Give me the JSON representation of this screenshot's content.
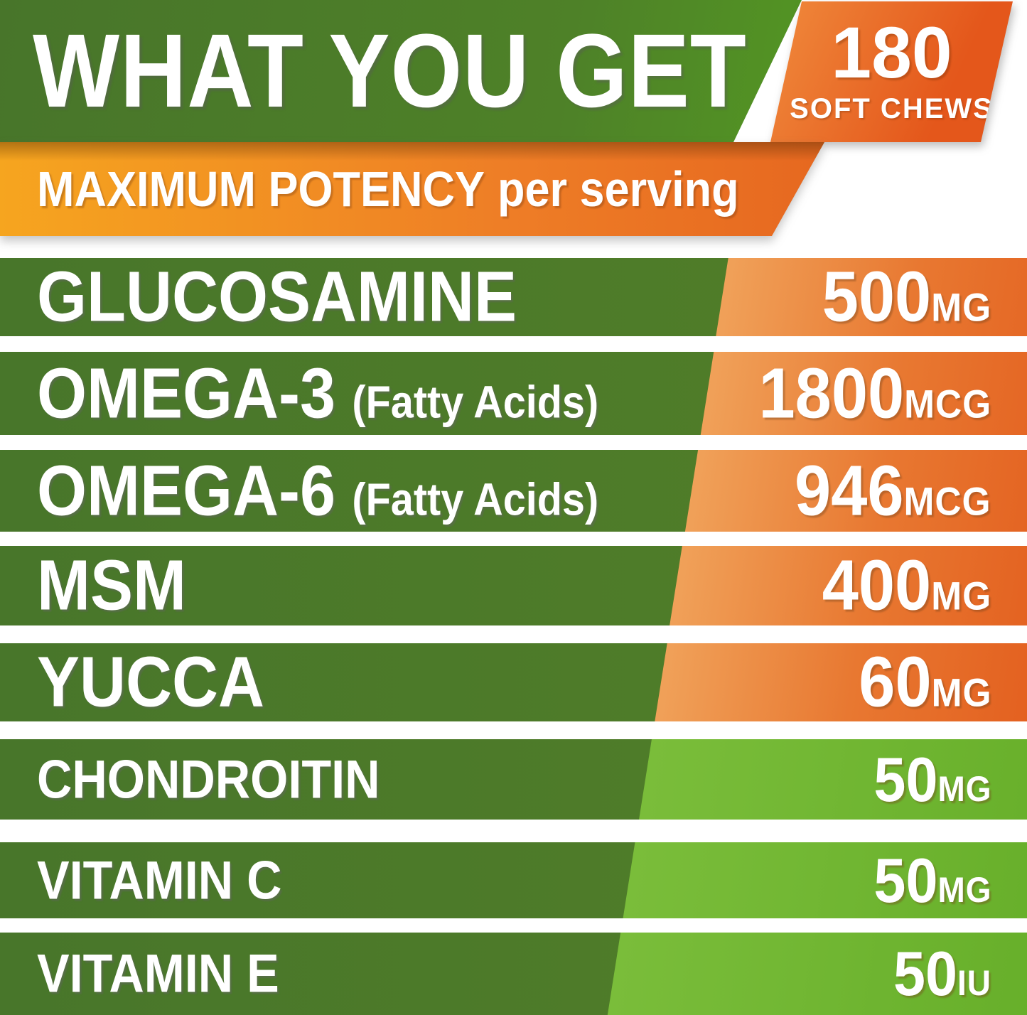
{
  "header": {
    "title": "WHAT YOU GET",
    "chews_count": "180",
    "chews_label": "SOFT CHEWS"
  },
  "subheader": {
    "bold": "MAXIMUM POTENCY",
    "regular": "per serving"
  },
  "rows": [
    {
      "name": "GLUCOSAMINE",
      "note": "",
      "value": "500",
      "unit": "MG",
      "theme": "orange"
    },
    {
      "name": "OMEGA-3",
      "note": "(Fatty Acids)",
      "value": "1800",
      "unit": "MCG",
      "theme": "orange"
    },
    {
      "name": "OMEGA-6",
      "note": "(Fatty Acids)",
      "value": "946",
      "unit": "MCG",
      "theme": "orange"
    },
    {
      "name": "MSM",
      "note": "",
      "value": "400",
      "unit": "MG",
      "theme": "orange"
    },
    {
      "name": "YUCCA",
      "note": "",
      "value": "60",
      "unit": "MG",
      "theme": "orange"
    },
    {
      "name": "CHONDROITIN",
      "note": "",
      "value": "50",
      "unit": "MG",
      "theme": "green"
    },
    {
      "name": "VITAMIN C",
      "note": "",
      "value": "50",
      "unit": "MG",
      "theme": "green"
    },
    {
      "name": "VITAMIN E",
      "note": "",
      "value": "50",
      "unit": "IU",
      "theme": "green"
    }
  ],
  "colors": {
    "banner_green_dark": "#48752a",
    "banner_green_bright": "#57a71f",
    "row_green": "#4d7c29",
    "amount_green_bright": "#6db32e",
    "orange_light": "#f0a159",
    "orange_deep": "#e25a1b",
    "ribbon_yellow_orange": "#f6a51f",
    "ribbon_red_orange": "#e15a1c",
    "text_white": "#ffffff"
  }
}
